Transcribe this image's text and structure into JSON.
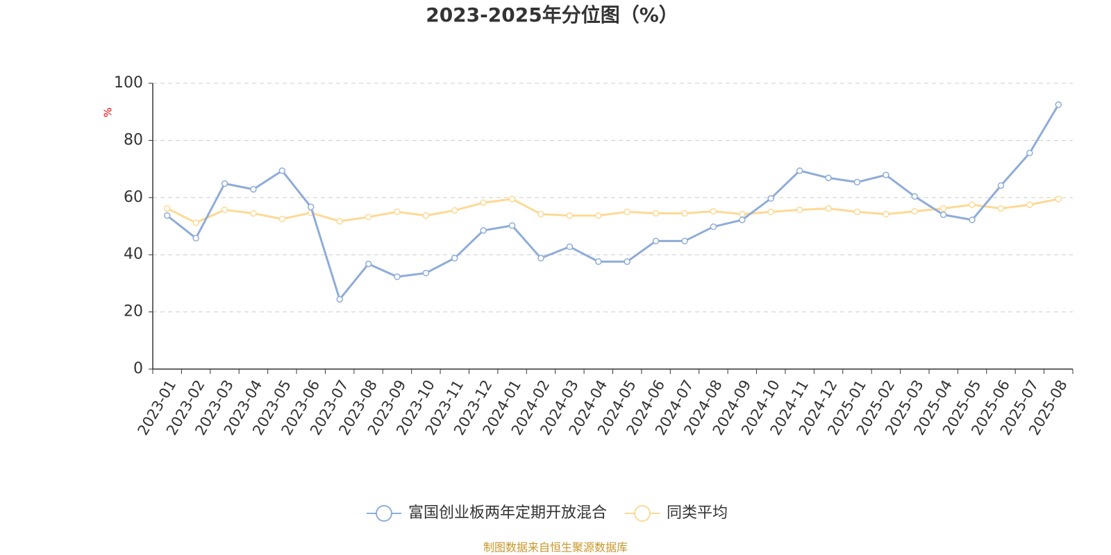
{
  "chart_data": {
    "type": "line",
    "title": "2023-2025年分位图（%）",
    "y_label": "%",
    "source": "制图数据来自恒生聚源数据库",
    "categories": [
      "2023-01",
      "2023-02",
      "2023-03",
      "2023-04",
      "2023-05",
      "2023-06",
      "2023-07",
      "2023-08",
      "2023-09",
      "2023-10",
      "2023-11",
      "2023-12",
      "2024-01",
      "2024-02",
      "2024-03",
      "2024-04",
      "2024-05",
      "2024-06",
      "2024-07",
      "2024-08",
      "2024-09",
      "2024-10",
      "2024-11",
      "2024-12",
      "2025-01",
      "2025-02",
      "2025-03",
      "2025-04",
      "2025-05",
      "2025-06",
      "2025-07",
      "2025-08"
    ],
    "series": [
      {
        "name": "富国创业板两年定期开放混合",
        "color": "#8eacd8",
        "values": [
          53.7,
          45.8,
          64.9,
          62.9,
          69.4,
          56.7,
          24.4,
          36.8,
          32.3,
          33.6,
          38.8,
          48.5,
          50.2,
          38.8,
          42.8,
          37.6,
          37.6,
          44.8,
          44.8,
          49.8,
          52.2,
          59.7,
          69.4,
          66.9,
          65.4,
          67.9,
          60.4,
          54.0,
          52.2,
          64.2,
          75.6,
          92.5
        ]
      },
      {
        "name": "同类平均",
        "color": "#fdd994",
        "values": [
          56.2,
          51.2,
          55.7,
          54.5,
          52.5,
          54.7,
          51.7,
          53.2,
          55.0,
          53.7,
          55.5,
          58.2,
          59.5,
          54.2,
          53.7,
          53.7,
          55.0,
          54.5,
          54.5,
          55.2,
          54.2,
          55.0,
          55.7,
          56.2,
          55.0,
          54.2,
          55.2,
          56.2,
          57.5,
          56.2,
          57.5,
          59.5
        ]
      }
    ],
    "ylim": [
      0,
      100
    ],
    "yticks": [
      0,
      20,
      40,
      60,
      80,
      100
    ],
    "grid": true
  }
}
